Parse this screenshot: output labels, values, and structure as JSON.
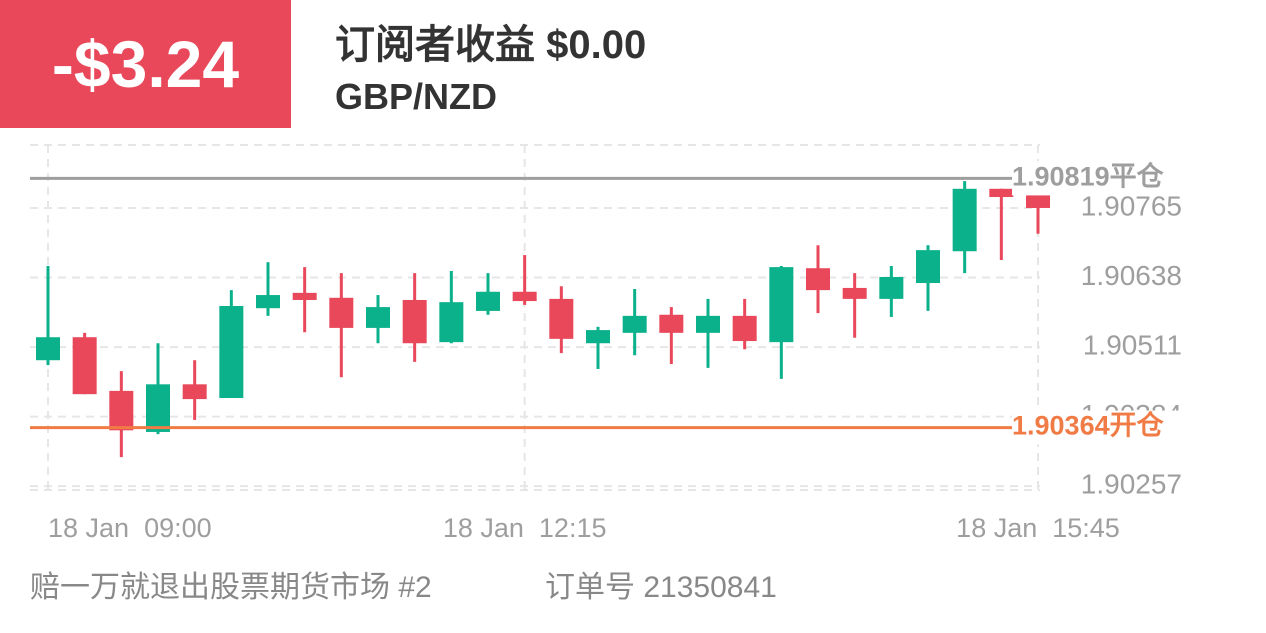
{
  "header": {
    "profit": "-$3.24",
    "title": "订阅者收益 $0.00",
    "pair": "GBP/NZD"
  },
  "chart_data": {
    "type": "candlestick",
    "categories": [
      "18 Jan  09:00",
      null,
      null,
      null,
      null,
      null,
      null,
      null,
      null,
      null,
      null,
      null,
      null,
      "18 Jan  12:15",
      null,
      null,
      null,
      null,
      null,
      null,
      null,
      null,
      null,
      null,
      null,
      null,
      null,
      "18 Jan  15:45"
    ],
    "open": [
      1.90487,
      1.90529,
      1.90431,
      1.90356,
      1.90443,
      1.90418,
      1.90582,
      1.9061,
      1.90601,
      1.90546,
      1.90597,
      1.9052,
      1.90577,
      1.90612,
      1.90599,
      1.90518,
      1.90537,
      1.9057,
      1.90537,
      1.90568,
      1.9052,
      1.90655,
      1.90619,
      1.90599,
      1.90628,
      1.90686,
      1.908,
      1.90789
    ],
    "high": [
      1.90659,
      1.90537,
      1.90467,
      1.90518,
      1.90487,
      1.90615,
      1.90666,
      1.90657,
      1.90646,
      1.90606,
      1.90646,
      1.9065,
      1.90646,
      1.90679,
      1.90622,
      1.90548,
      1.90617,
      1.90584,
      1.90599,
      1.90599,
      1.90659,
      1.90697,
      1.90646,
      1.90659,
      1.90697,
      1.90814,
      1.908,
      1.90789
    ],
    "low": [
      1.90478,
      1.90425,
      1.9031,
      1.90352,
      1.90378,
      1.90418,
      1.90568,
      1.90538,
      1.90456,
      1.90518,
      1.90484,
      1.90518,
      1.9057,
      1.90588,
      1.905,
      1.90471,
      1.90496,
      1.9048,
      1.90473,
      1.90507,
      1.90453,
      1.90573,
      1.90528,
      1.90566,
      1.90577,
      1.90646,
      1.9067,
      1.90718
    ],
    "close": [
      1.90529,
      1.90425,
      1.90359,
      1.90443,
      1.90416,
      1.90586,
      1.90606,
      1.90597,
      1.90546,
      1.90584,
      1.90518,
      1.90593,
      1.90612,
      1.90595,
      1.90526,
      1.90542,
      1.90568,
      1.90537,
      1.90568,
      1.90522,
      1.90657,
      1.90615,
      1.90599,
      1.90639,
      1.90688,
      1.908,
      1.90785,
      1.90765
    ],
    "up_color": "#0bb18b",
    "down_color": "#e8485a",
    "ylim": [
      1.9025,
      1.9088
    ],
    "yticks": [
      1.90257,
      1.90384,
      1.90511,
      1.90638,
      1.90765
    ],
    "grid": true,
    "reference_lines": [
      {
        "value": 1.90819,
        "label": "平仓",
        "color": "#9e9e9e"
      },
      {
        "value": 1.90364,
        "label": "开仓",
        "color": "#f07b45"
      }
    ]
  },
  "footer": {
    "account": "赔一万就退出股票期货市场 #2",
    "order": "订单号 21350841"
  }
}
